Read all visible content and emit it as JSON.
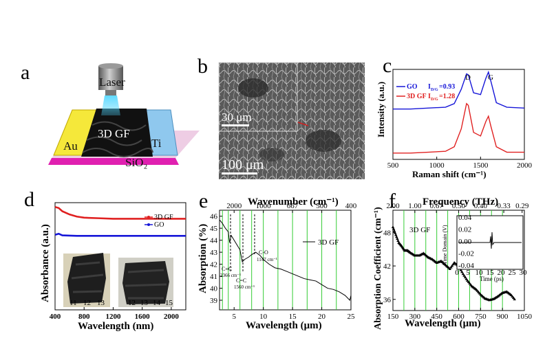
{
  "panel_labels": {
    "a": "a",
    "b": "b",
    "c": "c",
    "d": "d",
    "e": "e",
    "f": "f"
  },
  "device": {
    "laser": "Laser",
    "graphene": "3D GF",
    "left_electrode": "Au",
    "right_electrode": "Ti",
    "substrate": "SiO₂"
  },
  "sem": {
    "scale_inset": "30 μm",
    "scale_main": "100 μm"
  },
  "colors": {
    "go": "#1515d8",
    "gf": "#e02020",
    "green_grid": "#33cc33",
    "au": "#f5e83a",
    "ti": "#8fc8ee",
    "sio2": "#e020b0"
  },
  "chart_data": [
    {
      "panel": "c",
      "type": "line",
      "xlabel": "Raman shift (cm⁻¹)",
      "ylabel": "Intensity (a.u.)",
      "x_ticks": [
        "500",
        "1000",
        "1500",
        "2000"
      ],
      "xlim": [
        500,
        2000
      ],
      "peak_labels": [
        "D",
        "G"
      ],
      "legend": [
        {
          "name": "GO",
          "note": "I",
          "sub": "D/G",
          "val": "=0.93"
        },
        {
          "name": "3D GF",
          "note": "I",
          "sub": "D/G",
          "val": "=1.28"
        }
      ],
      "series": [
        {
          "name": "GO",
          "x": [
            500,
            700,
            900,
            1100,
            1200,
            1280,
            1340,
            1360,
            1420,
            1500,
            1560,
            1590,
            1620,
            1680,
            1800,
            2000
          ],
          "y": [
            0.56,
            0.56,
            0.57,
            0.58,
            0.62,
            0.78,
            0.95,
            0.94,
            0.74,
            0.72,
            0.9,
            0.97,
            0.86,
            0.63,
            0.58,
            0.57
          ]
        },
        {
          "name": "3D GF",
          "x": [
            500,
            700,
            900,
            1100,
            1200,
            1280,
            1340,
            1360,
            1420,
            1500,
            1560,
            1590,
            1620,
            1680,
            1800,
            2000
          ],
          "y": [
            0.07,
            0.07,
            0.08,
            0.09,
            0.14,
            0.34,
            0.62,
            0.6,
            0.3,
            0.26,
            0.42,
            0.48,
            0.36,
            0.14,
            0.08,
            0.08
          ]
        }
      ]
    },
    {
      "panel": "d",
      "type": "line",
      "xlabel": "Wavelength (nm)",
      "ylabel": "Absorbance (a.u.)",
      "x_ticks": [
        "400",
        "800",
        "1200",
        "1600",
        "2000"
      ],
      "xlim": [
        400,
        2200
      ],
      "legend": [
        "3D GF",
        "GO"
      ],
      "photo_scale_left": [
        "11",
        "12",
        "13"
      ],
      "photo_scale_right": [
        "12",
        "13",
        "14",
        "15"
      ],
      "series": [
        {
          "name": "3D GF",
          "x": [
            400,
            450,
            500,
            600,
            700,
            800,
            1000,
            1200,
            1600,
            2200
          ],
          "y": [
            0.96,
            0.95,
            0.92,
            0.89,
            0.87,
            0.86,
            0.855,
            0.85,
            0.85,
            0.85
          ]
        },
        {
          "name": "GO",
          "x": [
            400,
            450,
            500,
            700,
            1000,
            1600,
            2200
          ],
          "y": [
            0.7,
            0.71,
            0.695,
            0.69,
            0.69,
            0.69,
            0.69
          ]
        }
      ]
    },
    {
      "panel": "e",
      "type": "line",
      "xlabel": "Wavelength (μm)",
      "ylabel": "Absorption (%)",
      "x2label": "Wavenumber (cm⁻¹)",
      "x_ticks": [
        "5",
        "10",
        "15",
        "20",
        "25"
      ],
      "x2_ticks": [
        "2000",
        "1000",
        "667",
        "500",
        "400"
      ],
      "y_ticks": [
        "46",
        "45",
        "44",
        "43",
        "42",
        "41",
        "40",
        "39"
      ],
      "xlim": [
        2.5,
        25
      ],
      "ylim": [
        38.2,
        46.5
      ],
      "legend": [
        "3D GF"
      ],
      "annotations": [
        "C≡C",
        "2366 cm⁻¹",
        "C=C",
        "1560 cm⁻¹",
        "C-O",
        "1147 cm⁻¹"
      ],
      "series": [
        {
          "name": "3D GF",
          "x": [
            2.5,
            3,
            3.5,
            4,
            4.23,
            4.5,
            5,
            5.5,
            6,
            6.4,
            6.8,
            7.5,
            8,
            8.7,
            9.5,
            10,
            11,
            12,
            13,
            14,
            15,
            16,
            17,
            18,
            19,
            20,
            21,
            22,
            23,
            24,
            24.8,
            25
          ],
          "y": [
            45.7,
            45.4,
            45.0,
            44.7,
            43.8,
            44.4,
            44.0,
            43.6,
            43.2,
            42.2,
            42.4,
            42.6,
            42.8,
            43.0,
            42.7,
            42.4,
            42.0,
            41.7,
            41.6,
            41.4,
            41.2,
            41.0,
            40.8,
            40.7,
            40.6,
            40.3,
            40.0,
            39.9,
            39.7,
            39.4,
            39.0,
            39.4
          ]
        }
      ]
    },
    {
      "panel": "f",
      "type": "scatter",
      "xlabel": "Wavelength (μm)",
      "ylabel": "Absorption Coefficient (cm⁻¹)",
      "x2label": "Frequency (THz)",
      "x_ticks": [
        "150",
        "300",
        "450",
        "600",
        "750",
        "900",
        "1050"
      ],
      "x2_ticks": [
        "2.00",
        "1.00",
        "0.67",
        "0.50",
        "0.40",
        "0.33",
        "0.29"
      ],
      "y_ticks": [
        "48",
        "42",
        "36"
      ],
      "xlim": [
        150,
        1050
      ],
      "ylim": [
        34,
        52
      ],
      "legend": [
        "3D GF"
      ],
      "inset": {
        "xlabel": "Time (ps)",
        "ylabel": "Time Domain (V)",
        "x_ticks": [
          "0",
          "5",
          "10",
          "15",
          "20",
          "25",
          "30"
        ],
        "y_ticks": [
          "0.04",
          "0.02",
          "0.00",
          "-0.02",
          "-0.04"
        ]
      },
      "series": [
        {
          "name": "3D GF",
          "x": [
            150,
            170,
            190,
            210,
            230,
            250,
            270,
            300,
            330,
            360,
            390,
            420,
            450,
            480,
            510,
            540,
            570,
            600,
            630,
            660,
            690,
            720,
            750,
            780,
            810,
            840,
            870,
            900,
            930,
            960,
            990
          ],
          "y": [
            49.0,
            47.6,
            46.2,
            45.6,
            44.8,
            44.8,
            44.4,
            43.9,
            43.9,
            44.3,
            43.6,
            43.2,
            42.6,
            42.9,
            42.2,
            41.5,
            42.6,
            42.0,
            40.6,
            39.4,
            38.4,
            37.8,
            36.9,
            36.2,
            35.9,
            36.1,
            36.6,
            37.2,
            37.4,
            36.8,
            35.8
          ]
        }
      ]
    }
  ]
}
